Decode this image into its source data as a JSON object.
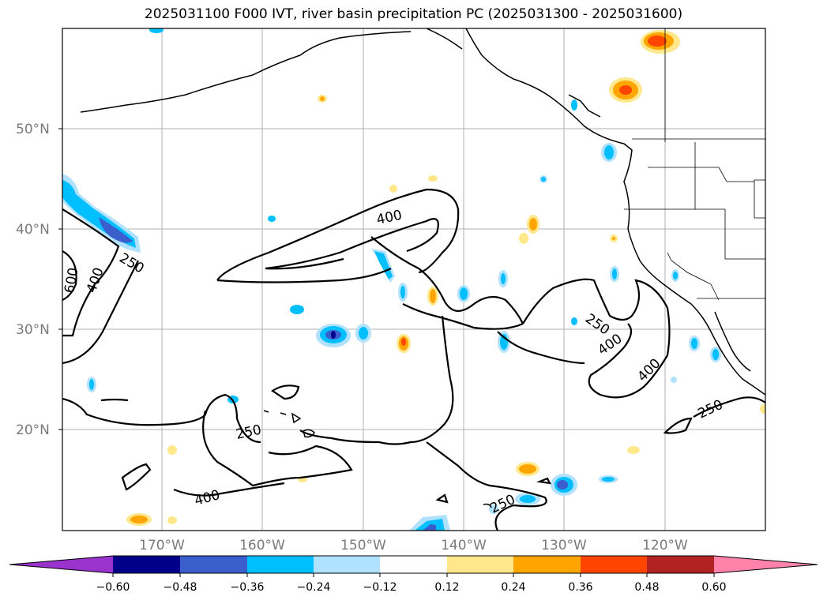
{
  "title": "2025031100 F000 IVT, river basin precipitation PC (2025031300 - 2025031600)",
  "lat_labels": [
    "50°N",
    "40°N",
    "30°N",
    "20°N"
  ],
  "lon_labels": [
    "170°W",
    "160°W",
    "150°W",
    "140°W",
    "130°W",
    "120°W"
  ],
  "contour_labels": [
    "400",
    "250",
    "400",
    "600",
    "250",
    "400",
    "400",
    "250",
    "250",
    "400",
    "250"
  ],
  "colorbar": {
    "tick_labels": [
      "−0.60",
      "−0.48",
      "−0.36",
      "−0.24",
      "−0.12",
      "0.12",
      "0.24",
      "0.36",
      "0.48",
      "0.60"
    ],
    "colors": [
      "#9a32cd",
      "#00008b",
      "#3a5fcd",
      "#00bfff",
      "#b0e2ff",
      "#ffffff",
      "#ffe88c",
      "#ffa500",
      "#ff4500",
      "#b22222",
      "#ff82ab"
    ]
  }
}
